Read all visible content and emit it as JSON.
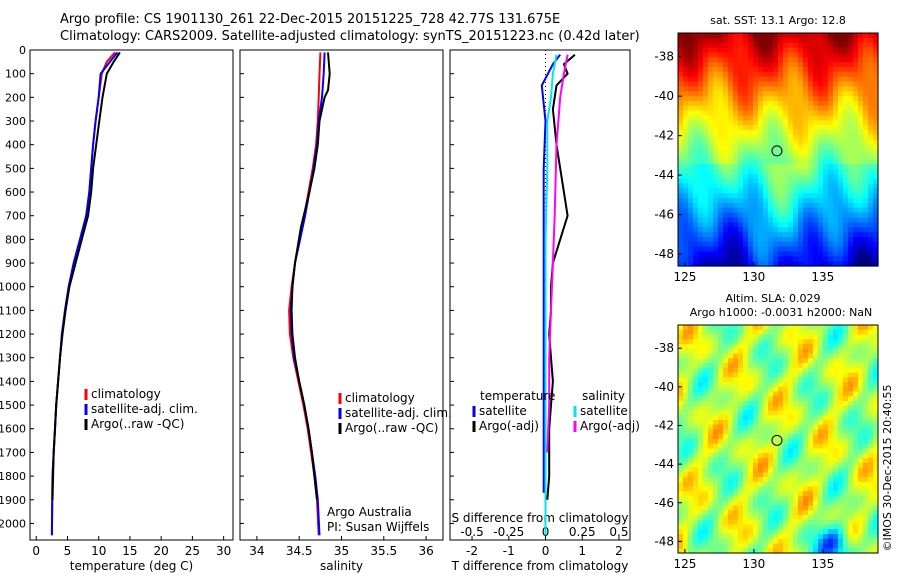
{
  "header": {
    "line1": "Argo profile: CS 1901130_261 22-Dec-2015 20151225_728 42.77S 131.675E",
    "line2": "Climatology: CARS2009. Satellite-adjusted climatology: synTS_20151223.nc (0.42d later)"
  },
  "colors": {
    "climatology": "#ff0000",
    "satellite": "#0000ff",
    "argo": "#000000",
    "sal_satellite": "#00e5ee",
    "sal_argo": "#ff00ff"
  },
  "chart_data": [
    {
      "type": "line",
      "name": "temperature_profile",
      "xlabel": "temperature (deg C)",
      "xlim": [
        -1,
        31.5
      ],
      "xticks": [
        0,
        5,
        10,
        15,
        20,
        25,
        30
      ],
      "ylim": [
        2070,
        0
      ],
      "yticks": [
        0,
        100,
        200,
        300,
        400,
        500,
        600,
        700,
        800,
        900,
        1000,
        1100,
        1200,
        1300,
        1400,
        1500,
        1600,
        1700,
        1800,
        1900,
        2000
      ],
      "legend": [
        "climatology",
        "satellite-adj. clim.",
        "Argo(..raw -QC)"
      ],
      "series": [
        {
          "name": "climatology",
          "x": [
            12.6,
            11.3,
            10.5,
            10.0,
            9.5,
            9.1,
            8.8,
            8.5,
            8.0,
            7.0,
            6.0,
            5.2,
            4.6,
            4.1,
            3.8,
            3.5,
            3.2,
            3.0,
            2.8,
            2.6,
            2.5
          ],
          "y": [
            10,
            50,
            100,
            200,
            300,
            400,
            500,
            600,
            700,
            800,
            900,
            1000,
            1100,
            1200,
            1300,
            1400,
            1500,
            1600,
            1700,
            1800,
            2050
          ]
        },
        {
          "name": "satellite-adj. clim.",
          "x": [
            13.0,
            11.8,
            10.3,
            10.0,
            9.5,
            9.1,
            8.8,
            8.5,
            8.0,
            7.0,
            6.0,
            5.2,
            4.6,
            4.1,
            3.8,
            3.5,
            3.2,
            3.0,
            2.8,
            2.6,
            2.5
          ],
          "y": [
            10,
            50,
            100,
            200,
            300,
            400,
            500,
            600,
            700,
            800,
            900,
            1000,
            1100,
            1200,
            1300,
            1400,
            1500,
            1600,
            1700,
            1800,
            2050
          ]
        },
        {
          "name": "Argo(..raw -QC)",
          "x": [
            13.4,
            12.4,
            11.3,
            10.6,
            10.1,
            9.6,
            9.1,
            8.8,
            8.3,
            7.3,
            6.3,
            5.3,
            4.7,
            4.2,
            3.8,
            3.5,
            3.2,
            3.0,
            2.8,
            2.7,
            2.6
          ],
          "y": [
            10,
            50,
            100,
            200,
            300,
            400,
            500,
            600,
            700,
            800,
            900,
            1000,
            1100,
            1200,
            1300,
            1400,
            1500,
            1600,
            1700,
            1800,
            1900
          ]
        }
      ]
    },
    {
      "type": "line",
      "name": "salinity_profile",
      "xlabel": "salinity",
      "xlim": [
        33.8,
        36.2
      ],
      "xticks": [
        34,
        34.5,
        35,
        35.5,
        36
      ],
      "xticklabels": [
        "34",
        "34.5",
        "35",
        "35.5",
        "36"
      ],
      "ylim": [
        2070,
        0
      ],
      "legend": [
        "climatology",
        "satellite-adj. clim.",
        "Argo(..raw -QC)"
      ],
      "annotation": [
        "Argo Australia",
        "PI: Susan Wijffels"
      ],
      "series": [
        {
          "name": "climatology",
          "x": [
            34.75,
            34.74,
            34.73,
            34.72,
            34.7,
            34.66,
            34.61,
            34.56,
            34.5,
            34.45,
            34.41,
            34.38,
            34.39,
            34.43,
            34.49,
            34.55,
            34.6,
            34.64,
            34.68,
            34.71,
            34.73
          ],
          "y": [
            10,
            100,
            200,
            300,
            400,
            500,
            600,
            700,
            800,
            900,
            1000,
            1100,
            1200,
            1300,
            1400,
            1500,
            1600,
            1700,
            1800,
            1900,
            2050
          ]
        },
        {
          "name": "satellite-adj. clim.",
          "x": [
            34.8,
            34.79,
            34.77,
            34.73,
            34.71,
            34.67,
            34.62,
            34.57,
            34.51,
            34.45,
            34.42,
            34.4,
            34.41,
            34.44,
            34.5,
            34.56,
            34.61,
            34.65,
            34.69,
            34.72,
            34.74
          ],
          "y": [
            10,
            100,
            200,
            300,
            400,
            500,
            600,
            700,
            800,
            900,
            1000,
            1100,
            1200,
            1300,
            1400,
            1500,
            1600,
            1700,
            1800,
            1900,
            2050
          ]
        },
        {
          "name": "Argo(..raw -QC)",
          "x": [
            34.84,
            34.86,
            34.84,
            34.8,
            34.74,
            34.72,
            34.68,
            34.62,
            34.52,
            34.45,
            34.42,
            34.41,
            34.42,
            34.45,
            34.5,
            34.56,
            34.61,
            34.65,
            34.68,
            34.71
          ],
          "y": [
            10,
            100,
            170,
            200,
            300,
            400,
            500,
            600,
            750,
            900,
            1000,
            1100,
            1200,
            1300,
            1400,
            1500,
            1600,
            1700,
            1800,
            1900
          ]
        }
      ]
    },
    {
      "type": "line",
      "name": "difference_profile",
      "xlabel": "T difference from climatology",
      "xlabel_top": "S difference from climatology",
      "xlim": [
        -2.6,
        2.3
      ],
      "xticks": [
        -2,
        -1,
        0,
        1,
        2
      ],
      "top_xticks": [
        -0.5,
        -0.25,
        0,
        0.25,
        0.5
      ],
      "top_xticklabels": [
        "-0.5",
        "-0.25",
        "0",
        "0.25",
        "0.5"
      ],
      "ylim": [
        2070,
        0
      ],
      "legend_temperature": [
        "temperature",
        "satellite",
        "Argo(-adj)"
      ],
      "legend_salinity": [
        "salinity",
        "satellite",
        "Argo(-adj)"
      ],
      "series": [
        {
          "name": "satellite",
          "x": [
            0.4,
            0.2,
            -0.1,
            0.0,
            -0.05,
            -0.05,
            -0.05,
            -0.05,
            -0.05,
            -0.05,
            -0.05,
            -0.05,
            -0.05,
            -0.05,
            -0.05,
            -0.05,
            -0.05,
            -0.05
          ],
          "y": [
            20,
            60,
            150,
            300,
            500,
            700,
            900,
            1000,
            1100,
            1200,
            1300,
            1400,
            1500,
            1600,
            1700,
            1800,
            1850,
            1870
          ]
        },
        {
          "name": "Argo(-adj)",
          "x": [
            0.8,
            0.5,
            0.6,
            0.3,
            0.2,
            0.3,
            0.6,
            0.4,
            0.2,
            0.15,
            0.15,
            0.1,
            0.15,
            0.2,
            0.15,
            0.1,
            0.1,
            0.1,
            0.05
          ],
          "y": [
            20,
            60,
            100,
            150,
            250,
            400,
            700,
            800,
            900,
            1000,
            1100,
            1200,
            1300,
            1400,
            1500,
            1600,
            1700,
            1800,
            1900
          ]
        },
        {
          "name": "salinity satellite",
          "x": [
            0.3,
            0.2,
            0.15,
            0.05,
            0.05,
            0.0,
            0.0,
            0.0,
            0.0,
            0.0,
            0.0,
            0.0
          ],
          "y": [
            20,
            100,
            200,
            300,
            500,
            800,
            1000,
            1200,
            1500,
            1700,
            1900,
            2050
          ]
        },
        {
          "name": "salinity Argo(-adj)",
          "x": [
            0.6,
            0.5,
            0.4,
            0.3,
            0.25,
            0.2,
            0.15,
            0.1,
            0.1,
            0.05
          ],
          "y": [
            20,
            100,
            200,
            400,
            700,
            900,
            1100,
            1300,
            1500,
            1700
          ]
        }
      ]
    },
    {
      "type": "heatmap",
      "name": "sst_map",
      "title": "sat. SST: 13.1 Argo: 12.8",
      "xticks": [
        125,
        130,
        135
      ],
      "yticks": [
        -38,
        -40,
        -42,
        -44,
        -46,
        -48
      ],
      "xlim": [
        124.5,
        139
      ],
      "ylim": [
        -48.6,
        -36.8
      ],
      "marker": {
        "lon": 131.675,
        "lat": -42.77
      }
    },
    {
      "type": "heatmap",
      "name": "sla_map",
      "title_line1": "Altim. SLA: 0.029",
      "title_line2": "Argo h1000: -0.0031 h2000: NaN",
      "xticks": [
        125,
        130,
        135
      ],
      "yticks": [
        -38,
        -40,
        -42,
        -44,
        -46,
        -48
      ],
      "xlim": [
        124.5,
        139
      ],
      "ylim": [
        -48.6,
        -36.8
      ],
      "marker": {
        "lon": 131.675,
        "lat": -42.77
      }
    }
  ],
  "side_label": "©IMOS 30-Dec-2015 20:40:55"
}
